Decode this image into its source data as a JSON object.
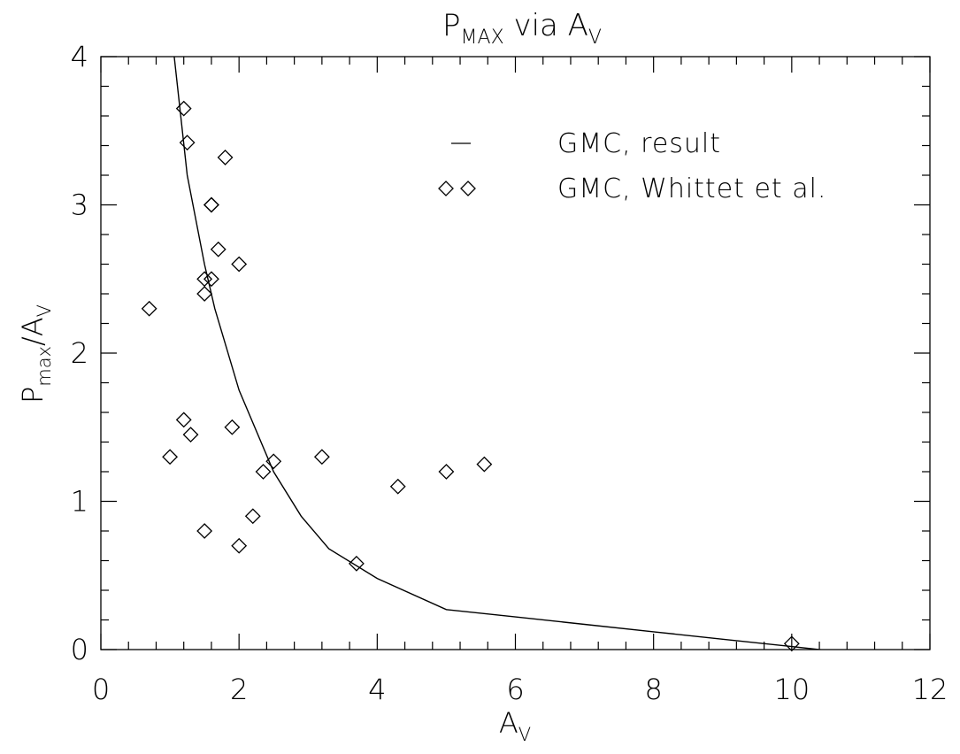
{
  "chart_data": {
    "type": "scatter",
    "title": {
      "main": "P",
      "sub1": "MAX",
      "mid": " via A",
      "sub2": "V"
    },
    "xlabel": {
      "main": "A",
      "sub": "V"
    },
    "ylabel": {
      "main": "P",
      "sub1": "max",
      "mid": "/A",
      "sub2": "V"
    },
    "xlim": [
      0,
      12
    ],
    "ylim": [
      0,
      4
    ],
    "xticks": [
      0,
      2,
      4,
      6,
      8,
      10,
      12
    ],
    "yticks": [
      0,
      1,
      2,
      3,
      4
    ],
    "x_minor_step": 0.4,
    "y_minor_step": 0.2,
    "grid": false,
    "legend_position": "top-right",
    "legend": {
      "line_label": "GMC, result",
      "marker_label": "GMC, Whittet et al."
    },
    "series": [
      {
        "name": "GMC, result",
        "kind": "line",
        "x": [
          1.05,
          1.25,
          1.5,
          1.65,
          2.0,
          2.5,
          2.9,
          3.3,
          4.0,
          5.0,
          6.0,
          7.0,
          8.0,
          9.0,
          10.0,
          10.8
        ],
        "y": [
          4.05,
          3.2,
          2.6,
          2.3,
          1.75,
          1.2,
          0.9,
          0.68,
          0.48,
          0.27,
          0.22,
          0.17,
          0.12,
          0.07,
          0.02,
          -0.02
        ]
      },
      {
        "name": "GMC, Whittet et al.",
        "kind": "marker",
        "marker": "diamond",
        "x": [
          1.2,
          1.25,
          1.8,
          1.6,
          1.6,
          1.7,
          2.0,
          1.5,
          1.6,
          1.5,
          0.7,
          1.2,
          1.3,
          1.9,
          1.0,
          2.35,
          2.5,
          3.2,
          4.3,
          5.0,
          5.55,
          2.2,
          1.5,
          2.0,
          3.7,
          10.0
        ],
        "y": [
          3.65,
          3.42,
          3.32,
          3.0,
          3.0,
          2.7,
          2.6,
          2.5,
          2.5,
          2.4,
          2.3,
          1.55,
          1.45,
          1.5,
          1.3,
          1.2,
          1.27,
          1.3,
          1.1,
          1.2,
          1.25,
          0.9,
          0.8,
          0.7,
          0.58,
          0.04
        ]
      }
    ]
  }
}
